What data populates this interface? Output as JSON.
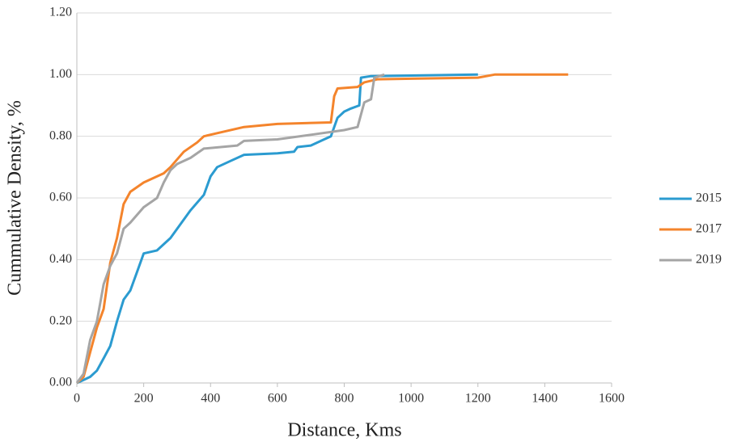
{
  "chart_data": {
    "type": "line",
    "x_label": "Distance, Kms",
    "y_label": "Cummulative Density, %",
    "xlim": [
      0,
      1600
    ],
    "xticks": [
      0,
      200,
      400,
      600,
      800,
      1000,
      1200,
      1400,
      1600
    ],
    "ylim": [
      0,
      1.2
    ],
    "yticks": [
      {
        "value": 0,
        "label": "0.00"
      },
      {
        "value": 0.2,
        "label": "0.20"
      },
      {
        "value": 0.4,
        "label": "0.40"
      },
      {
        "value": 0.6,
        "label": "0.60"
      },
      {
        "value": 0.8,
        "label": "0.80"
      },
      {
        "value": 1.0,
        "label": "1.00"
      },
      {
        "value": 1.2,
        "label": "1.20"
      }
    ],
    "grid": true,
    "legend": "right",
    "series": [
      {
        "name": "2015",
        "color": "#2b9bd0",
        "x": [
          0,
          20,
          40,
          60,
          80,
          100,
          120,
          140,
          160,
          180,
          200,
          240,
          280,
          300,
          340,
          380,
          400,
          420,
          460,
          500,
          600,
          650,
          660,
          700,
          740,
          760,
          780,
          800,
          820,
          845,
          850,
          880,
          1200
        ],
        "values": [
          0,
          0.01,
          0.02,
          0.04,
          0.08,
          0.12,
          0.2,
          0.27,
          0.3,
          0.36,
          0.42,
          0.43,
          0.47,
          0.5,
          0.56,
          0.61,
          0.67,
          0.7,
          0.72,
          0.74,
          0.745,
          0.75,
          0.765,
          0.77,
          0.79,
          0.8,
          0.86,
          0.88,
          0.89,
          0.9,
          0.99,
          0.995,
          1.0
        ]
      },
      {
        "name": "2017",
        "color": "#f4842c",
        "x": [
          0,
          20,
          40,
          60,
          80,
          100,
          120,
          140,
          160,
          200,
          260,
          280,
          320,
          360,
          380,
          420,
          500,
          600,
          760,
          770,
          780,
          840,
          860,
          900,
          1200,
          1250,
          1470
        ],
        "values": [
          0,
          0.02,
          0.1,
          0.18,
          0.24,
          0.39,
          0.47,
          0.58,
          0.62,
          0.65,
          0.68,
          0.7,
          0.75,
          0.78,
          0.8,
          0.81,
          0.83,
          0.84,
          0.845,
          0.93,
          0.955,
          0.96,
          0.975,
          0.985,
          0.99,
          1.0,
          1.0
        ]
      },
      {
        "name": "2019",
        "color": "#a5a5a5",
        "x": [
          0,
          20,
          40,
          60,
          80,
          100,
          120,
          140,
          160,
          200,
          240,
          260,
          280,
          300,
          340,
          380,
          480,
          500,
          600,
          700,
          800,
          840,
          860,
          880,
          890,
          920
        ],
        "values": [
          0,
          0.03,
          0.14,
          0.2,
          0.32,
          0.38,
          0.42,
          0.5,
          0.52,
          0.57,
          0.6,
          0.65,
          0.69,
          0.71,
          0.73,
          0.76,
          0.77,
          0.785,
          0.79,
          0.805,
          0.82,
          0.83,
          0.91,
          0.92,
          0.99,
          1.0
        ]
      }
    ]
  }
}
